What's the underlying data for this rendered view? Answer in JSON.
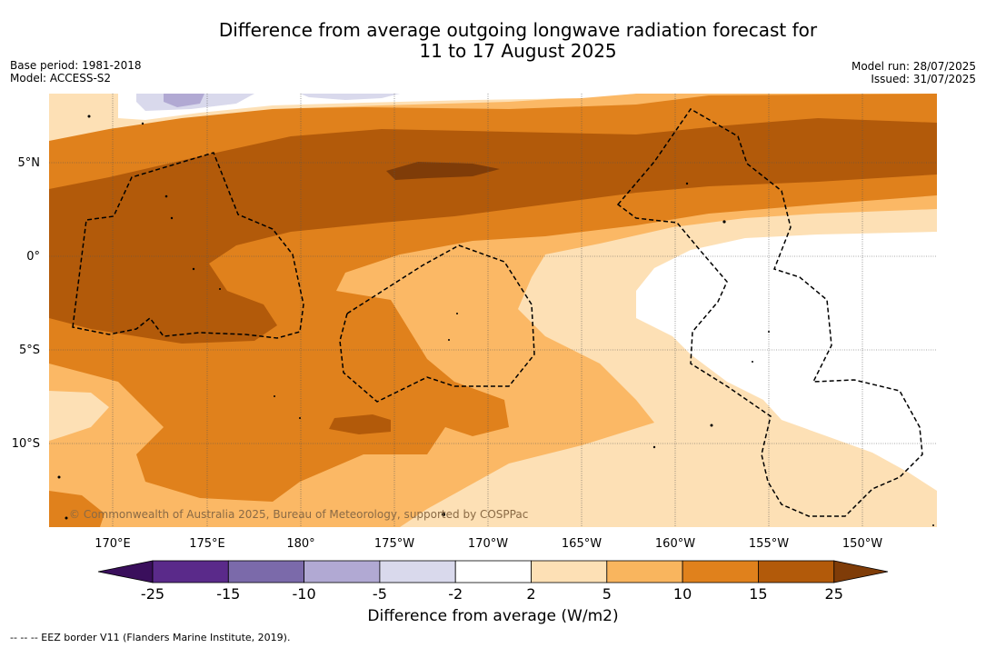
{
  "title_line1": "Difference from average outgoing longwave radiation forecast for",
  "title_line2": "11 to 17 August 2025",
  "base_period": "Base period: 1981-2018",
  "model": "Model: ACCESS-S2",
  "model_run": "Model run: 28/07/2025",
  "issued": "Issued: 31/07/2025",
  "lat_labels": [
    "5°N",
    "0°",
    "5°S",
    "10°S"
  ],
  "lon_labels": [
    "170°E",
    "175°E",
    "180°",
    "175°W",
    "170°W",
    "165°W",
    "160°W",
    "155°W",
    "150°W"
  ],
  "credit": "© Commonwealth of Australia 2025, Bureau of Meteorology, supported by COSPPac",
  "colorbar": {
    "title": "Difference from average (W/m2)",
    "ticks": [
      "-25",
      "-15",
      "-10",
      "-5",
      "-2",
      "2",
      "5",
      "10",
      "15",
      "25"
    ],
    "colors": [
      "#5a2a8a",
      "#7b6aaa",
      "#b1a9d3",
      "#d9d9ec",
      "#ffffff",
      "#fde0b5",
      "#f9b55e",
      "#e0811c",
      "#b25a0a"
    ],
    "extend_low_color": "#3a0f5c",
    "extend_high_color": "#7f3c08"
  },
  "eez_legend": "-- -- -- EEZ border V11 (Flanders Marine Institute, 2019)."
}
